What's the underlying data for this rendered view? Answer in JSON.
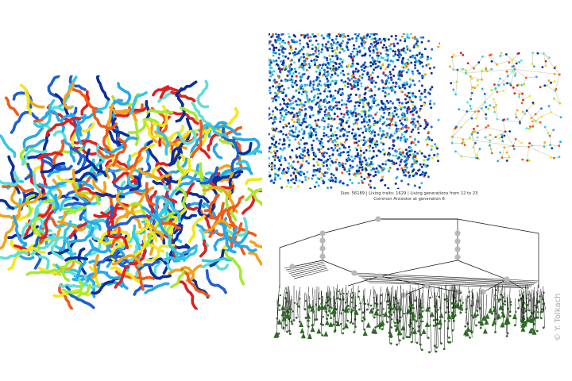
{
  "caption": {
    "line1": "Size: 56189 | Living traits: 1629 | Living generations from 12 to 23",
    "line2": "Common Ancestor at generation 6"
  },
  "credit": "© Y. Tolkach",
  "palette": [
    "#e02020",
    "#f05a1a",
    "#f2a31c",
    "#f1e81f",
    "#a8e830",
    "#35c8e0",
    "#28a8e8",
    "#1f5fd0",
    "#0a2f9a",
    "#5de0d8"
  ],
  "tree_colors": {
    "edge": "#111111",
    "node": "#2d6a24",
    "highlight": "#b8b8b8"
  }
}
